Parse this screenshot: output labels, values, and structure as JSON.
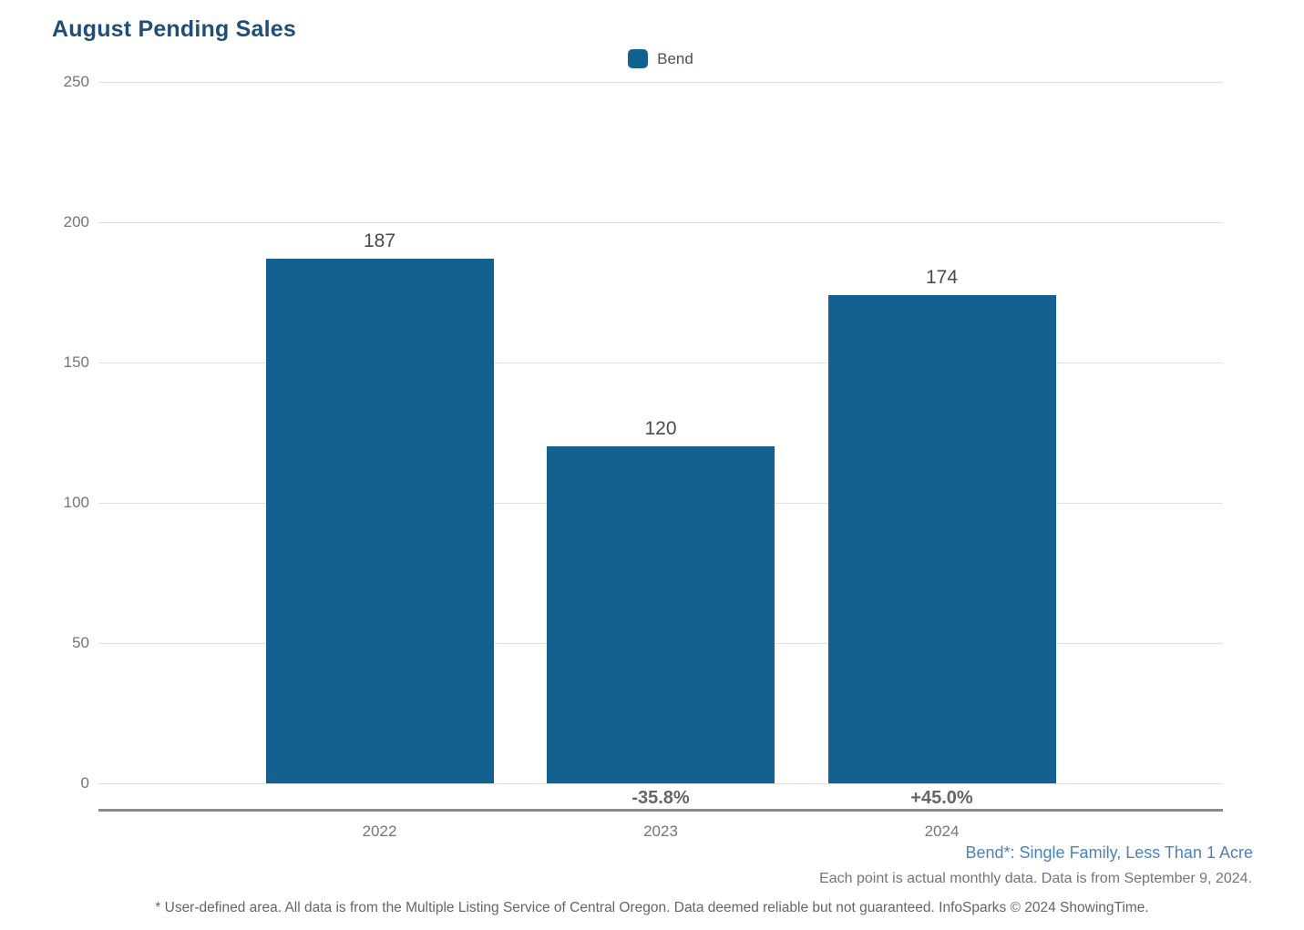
{
  "title": "August Pending Sales",
  "legend": {
    "label": "Bend",
    "swatch_color": "#136190"
  },
  "chart_data": {
    "type": "bar",
    "title": "August Pending Sales",
    "categories": [
      "2022",
      "2023",
      "2024"
    ],
    "series": [
      {
        "name": "Bend",
        "values": [
          187,
          120,
          174
        ]
      }
    ],
    "value_labels": [
      "187",
      "120",
      "174"
    ],
    "pct_change_labels": [
      "",
      "-35.8%",
      "+45.0%"
    ],
    "yticks": [
      250,
      200,
      150,
      100,
      50,
      0
    ],
    "ylim": [
      0,
      250
    ],
    "xlabel": "",
    "ylabel": "",
    "grid": true,
    "legend_position": "top-center",
    "bar_color": "#136190",
    "title_color": "#1f4e79",
    "note_color": "#4d82b8"
  },
  "footnotes": {
    "series_note": "Bend*: Single Family, Less Than 1 Acre",
    "data_note": "Each point is actual monthly data. Data is from September 9, 2024.",
    "disclaimer": "* User-defined area. All data is from the Multiple Listing Service of Central Oregon. Data deemed reliable but not guaranteed. InfoSparks © 2024 ShowingTime."
  }
}
